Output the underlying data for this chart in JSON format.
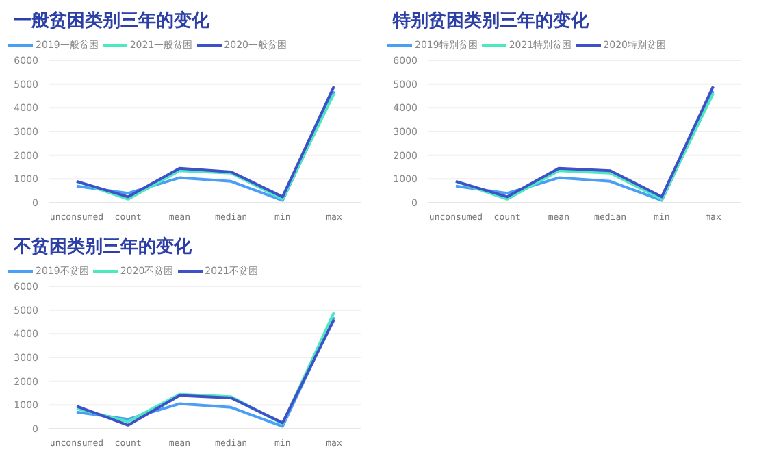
{
  "chart_data": [
    {
      "type": "line",
      "title": "一般贫困类别三年的变化",
      "categories": [
        "unconsumed",
        "count",
        "mean",
        "median",
        "min",
        "max"
      ],
      "series": [
        {
          "name": "2019一般贫困",
          "color": "#4a9ff5",
          "values": [
            700,
            400,
            1050,
            900,
            100,
            4700
          ]
        },
        {
          "name": "2021一般贫困",
          "color": "#4de8c0",
          "values": [
            900,
            150,
            1350,
            1250,
            150,
            4600
          ]
        },
        {
          "name": "2020一般贫困",
          "color": "#3f51c8",
          "values": [
            900,
            250,
            1450,
            1300,
            250,
            4900
          ]
        }
      ],
      "ylim": [
        0,
        6000
      ],
      "yticks": [
        0,
        1000,
        2000,
        3000,
        4000,
        5000,
        6000
      ],
      "grid": "y",
      "legend": "top left",
      "marker": "none"
    },
    {
      "type": "line",
      "title": "特别贫困类别三年的变化",
      "categories": [
        "unconsumed",
        "count",
        "mean",
        "median",
        "min",
        "max"
      ],
      "series": [
        {
          "name": "2019特别贫困",
          "color": "#4a9ff5",
          "values": [
            700,
            400,
            1050,
            900,
            100,
            4700
          ]
        },
        {
          "name": "2021特别贫困",
          "color": "#4de8c0",
          "values": [
            900,
            150,
            1350,
            1250,
            150,
            4600
          ]
        },
        {
          "name": "2020特别贫困",
          "color": "#3f51c8",
          "values": [
            900,
            250,
            1450,
            1350,
            250,
            4900
          ]
        }
      ],
      "ylim": [
        0,
        6000
      ],
      "yticks": [
        0,
        1000,
        2000,
        3000,
        4000,
        5000,
        6000
      ],
      "grid": "y",
      "legend": "top left",
      "marker": "none"
    },
    {
      "type": "line",
      "title": "不贫困类别三年的变化",
      "categories": [
        "unconsumed",
        "count",
        "mean",
        "median",
        "min",
        "max"
      ],
      "series": [
        {
          "name": "2019不贫困",
          "color": "#4a9ff5",
          "values": [
            700,
            400,
            1050,
            900,
            100,
            4700
          ]
        },
        {
          "name": "2020不贫困",
          "color": "#4de8c0",
          "values": [
            850,
            300,
            1450,
            1350,
            200,
            4900
          ]
        },
        {
          "name": "2021不贫困",
          "color": "#3f51c8",
          "values": [
            950,
            150,
            1400,
            1300,
            250,
            4600
          ]
        }
      ],
      "ylim": [
        0,
        6000
      ],
      "yticks": [
        0,
        1000,
        2000,
        3000,
        4000,
        5000,
        6000
      ],
      "grid": "y",
      "legend": "top left",
      "marker": "none"
    }
  ]
}
